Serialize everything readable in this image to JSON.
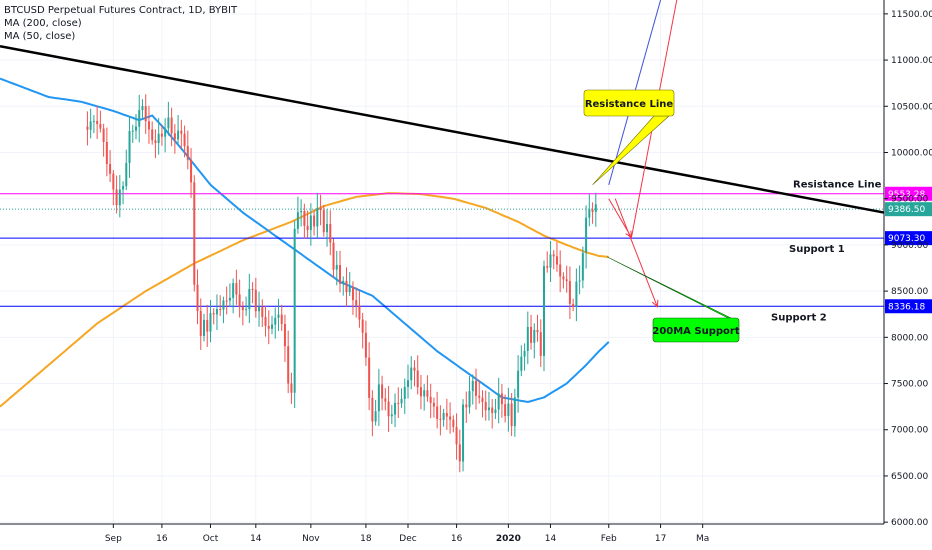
{
  "legend": {
    "title": "BTCUSD Perpetual Futures Contract, 1D, BYBIT",
    "ma200": "MA (200, close)",
    "ma50": "MA (50, close)"
  },
  "colors": {
    "up": "#26a69a",
    "down": "#ef5350",
    "ma50": "#2196f3",
    "ma200": "#f5a623",
    "trend": "#000000",
    "resistance": "#ff00ff",
    "support": "#0000ff",
    "proj_blue": "#3f51d9",
    "proj_red": "#f23645",
    "callout_yellow": "#ffff00",
    "callout_green": "#00ff00"
  },
  "chart_data": {
    "type": "candlestick",
    "title": "BTCUSD Perpetual Futures Contract, 1D, BYBIT",
    "interval": "1D",
    "xlim": [
      -35,
      238
    ],
    "ylim": [
      5980,
      11650
    ],
    "x_ticks": [
      {
        "label": "Sep",
        "day": 0
      },
      {
        "label": "16",
        "day": 15
      },
      {
        "label": "Oct",
        "day": 30
      },
      {
        "label": "14",
        "day": 44
      },
      {
        "label": "Nov",
        "day": 61
      },
      {
        "label": "18",
        "day": 78
      },
      {
        "label": "Dec",
        "day": 91
      },
      {
        "label": "16",
        "day": 106
      },
      {
        "label": "2020",
        "day": 122
      },
      {
        "label": "14",
        "day": 135
      },
      {
        "label": "Feb",
        "day": 153
      },
      {
        "label": "17",
        "day": 169
      },
      {
        "label": "Ma",
        "day": 182
      }
    ],
    "y_ticks": [
      6000,
      6500,
      7000,
      7500,
      8000,
      8500,
      9000,
      9500,
      10000,
      10500,
      11000,
      11500
    ],
    "y_tick_labels": [
      "6000.00",
      "6500.00",
      "7000.00",
      "7500.00",
      "8000.00",
      "8500.00",
      "9000.00",
      "9500.00",
      "10000.00",
      "10500.00",
      "11000.00",
      "11500.00"
    ],
    "close_anchors": [
      [
        -8,
        10280
      ],
      [
        -5,
        10390
      ],
      [
        -3,
        10150
      ],
      [
        -1,
        9750
      ],
      [
        1,
        9450
      ],
      [
        3,
        9600
      ],
      [
        5,
        10150
      ],
      [
        7,
        10300
      ],
      [
        9,
        10550
      ],
      [
        11,
        10250
      ],
      [
        13,
        10150
      ],
      [
        15,
        10200
      ],
      [
        17,
        10300
      ],
      [
        19,
        10100
      ],
      [
        21,
        10220
      ],
      [
        23,
        9900
      ],
      [
        24,
        9750
      ],
      [
        25,
        8600
      ],
      [
        26,
        8300
      ],
      [
        27,
        8100
      ],
      [
        28,
        8200
      ],
      [
        29,
        8050
      ],
      [
        30,
        8300
      ],
      [
        31,
        8200
      ],
      [
        33,
        8300
      ],
      [
        35,
        8350
      ],
      [
        37,
        8550
      ],
      [
        39,
        8400
      ],
      [
        40,
        8300
      ],
      [
        41,
        8350
      ],
      [
        42,
        8600
      ],
      [
        43,
        8500
      ],
      [
        44,
        8300
      ],
      [
        45,
        8350
      ],
      [
        46,
        8150
      ],
      [
        47,
        8100
      ],
      [
        49,
        8050
      ],
      [
        50,
        8200
      ],
      [
        51,
        8250
      ],
      [
        52,
        8100
      ],
      [
        53,
        7950
      ],
      [
        54,
        7550
      ],
      [
        55,
        7400
      ],
      [
        56,
        9250
      ],
      [
        57,
        9400
      ],
      [
        58,
        9350
      ],
      [
        59,
        9250
      ],
      [
        60,
        9150
      ],
      [
        61,
        9250
      ],
      [
        62,
        9200
      ],
      [
        63,
        9350
      ],
      [
        64,
        9300
      ],
      [
        65,
        9150
      ],
      [
        66,
        9200
      ],
      [
        67,
        9000
      ],
      [
        68,
        8800
      ],
      [
        69,
        8800
      ],
      [
        70,
        8600
      ],
      [
        71,
        8700
      ],
      [
        72,
        8500
      ],
      [
        73,
        8550
      ],
      [
        74,
        8450
      ],
      [
        75,
        8300
      ],
      [
        76,
        8150
      ],
      [
        77,
        8050
      ],
      [
        78,
        7700
      ],
      [
        79,
        7300
      ],
      [
        80,
        7100
      ],
      [
        81,
        7150
      ],
      [
        82,
        7500
      ],
      [
        83,
        7400
      ],
      [
        84,
        7300
      ],
      [
        85,
        7200
      ],
      [
        90,
        7400
      ],
      [
        92,
        7650
      ],
      [
        95,
        7350
      ],
      [
        97,
        7400
      ],
      [
        99,
        7250
      ],
      [
        101,
        7150
      ],
      [
        103,
        7200
      ],
      [
        104,
        7100
      ],
      [
        106,
        6850
      ],
      [
        107,
        6600
      ],
      [
        108,
        7200
      ],
      [
        109,
        7250
      ],
      [
        111,
        7500
      ],
      [
        113,
        7350
      ],
      [
        115,
        7300
      ],
      [
        117,
        7200
      ],
      [
        119,
        7350
      ],
      [
        121,
        7150
      ],
      [
        122,
        7200
      ],
      [
        123,
        7000
      ],
      [
        124,
        7350
      ],
      [
        126,
        7800
      ],
      [
        127,
        7900
      ],
      [
        128,
        8100
      ],
      [
        129,
        8000
      ],
      [
        130,
        8150
      ],
      [
        131,
        8050
      ],
      [
        132,
        7850
      ],
      [
        133,
        8800
      ],
      [
        134,
        8700
      ],
      [
        135,
        8900
      ],
      [
        136,
        8850
      ],
      [
        137,
        8700
      ],
      [
        138,
        8650
      ],
      [
        139,
        8600
      ],
      [
        140,
        8550
      ],
      [
        141,
        8400
      ],
      [
        142,
        8350
      ],
      [
        143,
        8600
      ],
      [
        144,
        8700
      ],
      [
        145,
        8950
      ],
      [
        146,
        9300
      ],
      [
        147,
        9450
      ],
      [
        148,
        9350
      ],
      [
        149,
        9400
      ]
    ],
    "ma_anchors": {
      "ma50": [
        [
          -35,
          10800
        ],
        [
          -20,
          10600
        ],
        [
          -10,
          10550
        ],
        [
          0,
          10450
        ],
        [
          8,
          10350
        ],
        [
          12,
          10400
        ],
        [
          16,
          10250
        ],
        [
          22,
          10000
        ],
        [
          30,
          9650
        ],
        [
          40,
          9350
        ],
        [
          50,
          9100
        ],
        [
          60,
          8850
        ],
        [
          70,
          8600
        ],
        [
          80,
          8450
        ],
        [
          90,
          8150
        ],
        [
          100,
          7850
        ],
        [
          110,
          7600
        ],
        [
          120,
          7350
        ],
        [
          128,
          7300
        ],
        [
          133,
          7350
        ],
        [
          140,
          7500
        ],
        [
          146,
          7700
        ],
        [
          150,
          7850
        ],
        [
          153,
          7950
        ]
      ],
      "ma200": [
        [
          -35,
          7250
        ],
        [
          -20,
          7700
        ],
        [
          -5,
          8150
        ],
        [
          10,
          8500
        ],
        [
          25,
          8800
        ],
        [
          40,
          9050
        ],
        [
          55,
          9250
        ],
        [
          65,
          9420
        ],
        [
          75,
          9520
        ],
        [
          85,
          9560
        ],
        [
          95,
          9550
        ],
        [
          105,
          9500
        ],
        [
          115,
          9400
        ],
        [
          125,
          9250
        ],
        [
          133,
          9100
        ],
        [
          140,
          9000
        ],
        [
          146,
          8920
        ],
        [
          150,
          8880
        ],
        [
          153,
          8870
        ]
      ]
    },
    "lines": {
      "trendline": {
        "from": [
          -35,
          11150
        ],
        "to": [
          238,
          9350
        ]
      },
      "resistance": {
        "value": 9553.28,
        "label": "9553.28"
      },
      "support1": {
        "value": 9073.3,
        "label": "9073.30"
      },
      "support2": {
        "value": 8336.18,
        "label": "8336.18"
      },
      "dotted_last": {
        "value": 9386.5,
        "label": "9386.50"
      },
      "proj_blue": {
        "from": [
          153,
          9650
        ],
        "to": [
          169,
          11650
        ]
      },
      "proj_red_up": {
        "from": [
          160,
          9080
        ],
        "to": [
          174,
          11650
        ]
      },
      "proj_red_down1": {
        "from": [
          153,
          9500
        ],
        "to": [
          160,
          9080
        ]
      },
      "proj_red_down2": {
        "from": [
          155,
          9500
        ],
        "to": [
          168,
          8330
        ]
      }
    },
    "annotations": [
      {
        "name": "resistance-callout",
        "text": "Resistance Line",
        "style": "yellow-callout"
      },
      {
        "name": "resistance-label",
        "text": "Resistance Line"
      },
      {
        "name": "support1-label",
        "text": "Support 1"
      },
      {
        "name": "support2-label",
        "text": "Support 2"
      },
      {
        "name": "ma200-callout",
        "text": "200MA Support",
        "style": "green-callout"
      }
    ]
  }
}
